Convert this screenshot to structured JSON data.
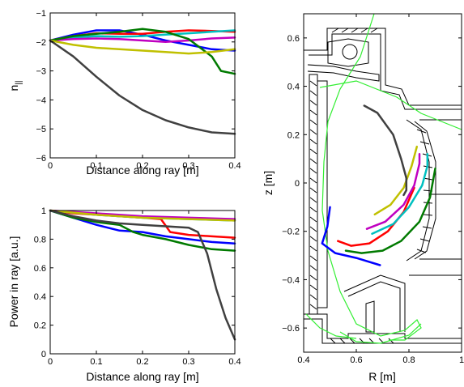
{
  "chart_data": [
    {
      "type": "line",
      "panel": "top-left",
      "xlabel": "Distance along ray [m]",
      "ylabel": "n",
      "ylabel_subscript": "||",
      "xlim": [
        0,
        0.4
      ],
      "ylim": [
        -6,
        -1
      ],
      "xticks": [
        0,
        0.1,
        0.2,
        0.3,
        0.4
      ],
      "xtick_labels": [
        "0",
        "0.1",
        "0.2",
        "0.3",
        "0.4"
      ],
      "yticks": [
        -6,
        -5,
        -4,
        -3,
        -2,
        -1
      ],
      "ytick_labels": [
        "−6",
        "−5",
        "−4",
        "−3",
        "−2",
        "−1"
      ],
      "grid": false,
      "series": [
        {
          "color": "#0000ff",
          "x": [
            0,
            0.05,
            0.1,
            0.15,
            0.2,
            0.25,
            0.3,
            0.35,
            0.4
          ],
          "y": [
            -1.95,
            -1.75,
            -1.6,
            -1.6,
            -1.75,
            -1.95,
            -2.1,
            -2.25,
            -2.3
          ]
        },
        {
          "color": "#ff0000",
          "x": [
            0,
            0.05,
            0.1,
            0.15,
            0.2,
            0.25,
            0.3,
            0.35,
            0.4
          ],
          "y": [
            -1.95,
            -1.8,
            -1.7,
            -1.72,
            -1.72,
            -1.65,
            -1.6,
            -1.62,
            -1.65
          ]
        },
        {
          "color": "#00c0c0",
          "x": [
            0,
            0.05,
            0.1,
            0.15,
            0.2,
            0.25,
            0.3,
            0.35,
            0.4
          ],
          "y": [
            -1.95,
            -1.85,
            -1.8,
            -1.82,
            -1.8,
            -1.75,
            -1.7,
            -1.65,
            -1.6
          ]
        },
        {
          "color": "#c000c0",
          "x": [
            0,
            0.05,
            0.1,
            0.15,
            0.2,
            0.25,
            0.3,
            0.35,
            0.4
          ],
          "y": [
            -1.95,
            -1.9,
            -1.88,
            -1.9,
            -1.95,
            -2.0,
            -1.95,
            -1.88,
            -1.85
          ]
        },
        {
          "color": "#007a00",
          "x": [
            0,
            0.05,
            0.1,
            0.15,
            0.2,
            0.25,
            0.3,
            0.35,
            0.37,
            0.4
          ],
          "y": [
            -1.95,
            -1.8,
            -1.72,
            -1.65,
            -1.55,
            -1.65,
            -1.9,
            -2.5,
            -3.0,
            -3.1
          ]
        },
        {
          "color": "#c0c000",
          "x": [
            0,
            0.05,
            0.1,
            0.15,
            0.2,
            0.25,
            0.3,
            0.35,
            0.4
          ],
          "y": [
            -1.95,
            -2.1,
            -2.2,
            -2.25,
            -2.3,
            -2.35,
            -2.4,
            -2.35,
            -2.25
          ]
        },
        {
          "color": "#404040",
          "x": [
            0,
            0.05,
            0.1,
            0.15,
            0.2,
            0.25,
            0.3,
            0.35,
            0.4
          ],
          "y": [
            -1.95,
            -2.5,
            -3.2,
            -3.85,
            -4.35,
            -4.7,
            -4.95,
            -5.12,
            -5.17
          ]
        }
      ]
    },
    {
      "type": "line",
      "panel": "bottom-left",
      "xlabel": "Distance along ray [m]",
      "ylabel": "Power in ray [a.u.]",
      "xlim": [
        0,
        0.4
      ],
      "ylim": [
        0,
        1
      ],
      "xticks": [
        0,
        0.1,
        0.2,
        0.3,
        0.4
      ],
      "xtick_labels": [
        "0",
        "0.1",
        "0.2",
        "0.3",
        "0.4"
      ],
      "yticks": [
        0,
        0.2,
        0.4,
        0.6,
        0.8,
        1
      ],
      "ytick_labels": [
        "0",
        "0.2",
        "0.4",
        "0.6",
        "0.8",
        "1"
      ],
      "grid": false,
      "series": [
        {
          "color": "#0000ff",
          "x": [
            0,
            0.05,
            0.1,
            0.15,
            0.2,
            0.25,
            0.3,
            0.35,
            0.4
          ],
          "y": [
            1.0,
            0.95,
            0.9,
            0.86,
            0.85,
            0.82,
            0.8,
            0.78,
            0.77
          ]
        },
        {
          "color": "#ff0000",
          "x": [
            0,
            0.05,
            0.1,
            0.2,
            0.24,
            0.26,
            0.3,
            0.35,
            0.4
          ],
          "y": [
            1.0,
            0.98,
            0.97,
            0.95,
            0.94,
            0.85,
            0.83,
            0.82,
            0.81
          ]
        },
        {
          "color": "#00c0c0",
          "x": [
            0,
            0.1,
            0.2,
            0.3,
            0.4
          ],
          "y": [
            1.0,
            0.97,
            0.95,
            0.94,
            0.93
          ]
        },
        {
          "color": "#c000c0",
          "x": [
            0,
            0.1,
            0.2,
            0.3,
            0.4
          ],
          "y": [
            1.0,
            0.98,
            0.96,
            0.95,
            0.94
          ]
        },
        {
          "color": "#007a00",
          "x": [
            0,
            0.05,
            0.1,
            0.15,
            0.18,
            0.2,
            0.25,
            0.3,
            0.35,
            0.4
          ],
          "y": [
            1.0,
            0.95,
            0.92,
            0.9,
            0.85,
            0.83,
            0.8,
            0.76,
            0.73,
            0.72
          ]
        },
        {
          "color": "#c0c000",
          "x": [
            0,
            0.1,
            0.2,
            0.3,
            0.4
          ],
          "y": [
            1.0,
            0.97,
            0.95,
            0.94,
            0.93
          ]
        },
        {
          "color": "#404040",
          "x": [
            0,
            0.05,
            0.1,
            0.15,
            0.2,
            0.25,
            0.3,
            0.32,
            0.34,
            0.36,
            0.38,
            0.4
          ],
          "y": [
            1.0,
            0.96,
            0.93,
            0.91,
            0.9,
            0.89,
            0.88,
            0.85,
            0.7,
            0.45,
            0.25,
            0.1
          ]
        }
      ]
    },
    {
      "type": "line",
      "panel": "right",
      "xlabel": "R [m]",
      "ylabel": "z [m]",
      "xlim": [
        0.4,
        1.0
      ],
      "ylim": [
        -0.7,
        0.7
      ],
      "xticks": [
        0.4,
        0.6,
        0.8,
        1.0
      ],
      "xtick_labels": [
        "0.4",
        "0.6",
        "0.8",
        "1"
      ],
      "yticks": [
        -0.6,
        -0.4,
        -0.2,
        0,
        0.2,
        0.4,
        0.6
      ],
      "ytick_labels": [
        "−0.6",
        "−0.4",
        "−0.2",
        "0",
        "0.2",
        "0.4",
        "0.6"
      ],
      "grid": false,
      "rays": [
        {
          "color": "#0000ff",
          "x": [
            0.5,
            0.49,
            0.47,
            0.52,
            0.6,
            0.69
          ],
          "y": [
            -0.1,
            -0.18,
            -0.25,
            -0.29,
            -0.31,
            -0.34
          ]
        },
        {
          "color": "#ff0000",
          "x": [
            0.53,
            0.58,
            0.65,
            0.72,
            0.78,
            0.82
          ],
          "y": [
            -0.24,
            -0.26,
            -0.25,
            -0.2,
            -0.12,
            -0.02
          ]
        },
        {
          "color": "#00c0c0",
          "x": [
            0.66,
            0.74,
            0.8,
            0.85,
            0.87,
            0.87
          ],
          "y": [
            -0.21,
            -0.17,
            -0.1,
            -0.01,
            0.07,
            0.12
          ]
        },
        {
          "color": "#c000c0",
          "x": [
            0.64,
            0.71,
            0.78,
            0.82,
            0.84,
            0.84
          ],
          "y": [
            -0.19,
            -0.16,
            -0.09,
            -0.01,
            0.08,
            0.12
          ]
        },
        {
          "color": "#007a00",
          "x": [
            0.56,
            0.62,
            0.7,
            0.77,
            0.84,
            0.88,
            0.9
          ],
          "y": [
            -0.28,
            -0.29,
            -0.28,
            -0.24,
            -0.16,
            -0.06,
            0.06
          ]
        },
        {
          "color": "#c0c000",
          "x": [
            0.67,
            0.73,
            0.78,
            0.81,
            0.83
          ],
          "y": [
            -0.13,
            -0.09,
            -0.02,
            0.07,
            0.15
          ]
        },
        {
          "color": "#404040",
          "x": [
            0.63,
            0.68,
            0.74,
            0.77,
            0.79,
            0.79,
            0.78
          ],
          "y": [
            0.32,
            0.29,
            0.2,
            0.1,
            0.02,
            -0.03,
            -0.05
          ]
        }
      ]
    }
  ]
}
